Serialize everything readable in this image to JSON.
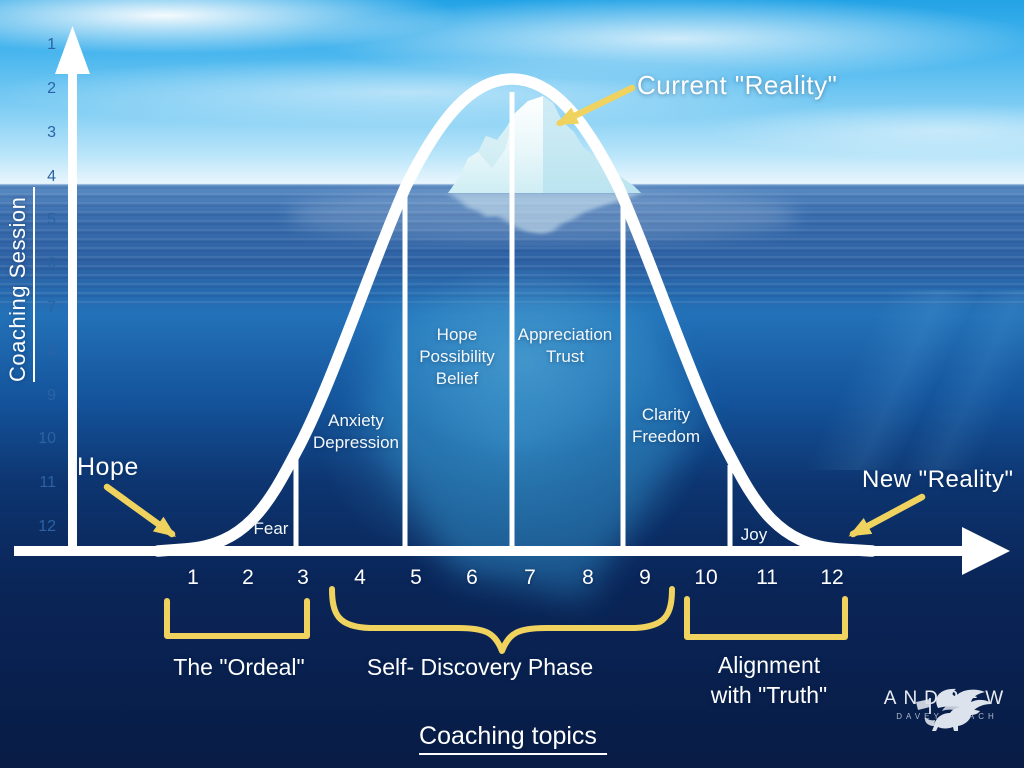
{
  "axes": {
    "y_label": "Coaching Session",
    "y_ticks": [
      "1",
      "2",
      "3",
      "4",
      "5",
      "6",
      "7",
      "8",
      "9",
      "10",
      "11",
      "12"
    ],
    "x_ticks": [
      "1",
      "2",
      "3",
      "4",
      "5",
      "6",
      "7",
      "8",
      "9",
      "10",
      "11",
      "12"
    ],
    "x_caption": "Coaching topics"
  },
  "callouts": {
    "current_reality": "Current \"Reality\"",
    "hope": "Hope",
    "new_reality": "New \"Reality\""
  },
  "stage_labels": {
    "fear": "Fear",
    "anxiety_line1": "Anxiety",
    "anxiety_line2": "Depression",
    "hope_line1": "Hope",
    "hope_line2": "Possibility",
    "hope_line3": "Belief",
    "appreciation_line1": "Appreciation",
    "appreciation_line2": "Trust",
    "clarity_line1": "Clarity",
    "clarity_line2": "Freedom",
    "joy": "Joy"
  },
  "phases": {
    "ordeal": "The \"Ordeal\"",
    "discovery": "Self- Discovery Phase",
    "alignment_line1": "Alignment",
    "alignment_line2": "with \"Truth\""
  },
  "logo": {
    "name": "ANDREW",
    "subtitle": "DAVEY COACH"
  },
  "colors": {
    "accent_yellow": "#F0D35E",
    "curve_white": "#FFFFFF",
    "y_tick_blue": "#2B63A4",
    "deep_navy": "#0A2558",
    "sky_blue": "#23A3E6"
  }
}
